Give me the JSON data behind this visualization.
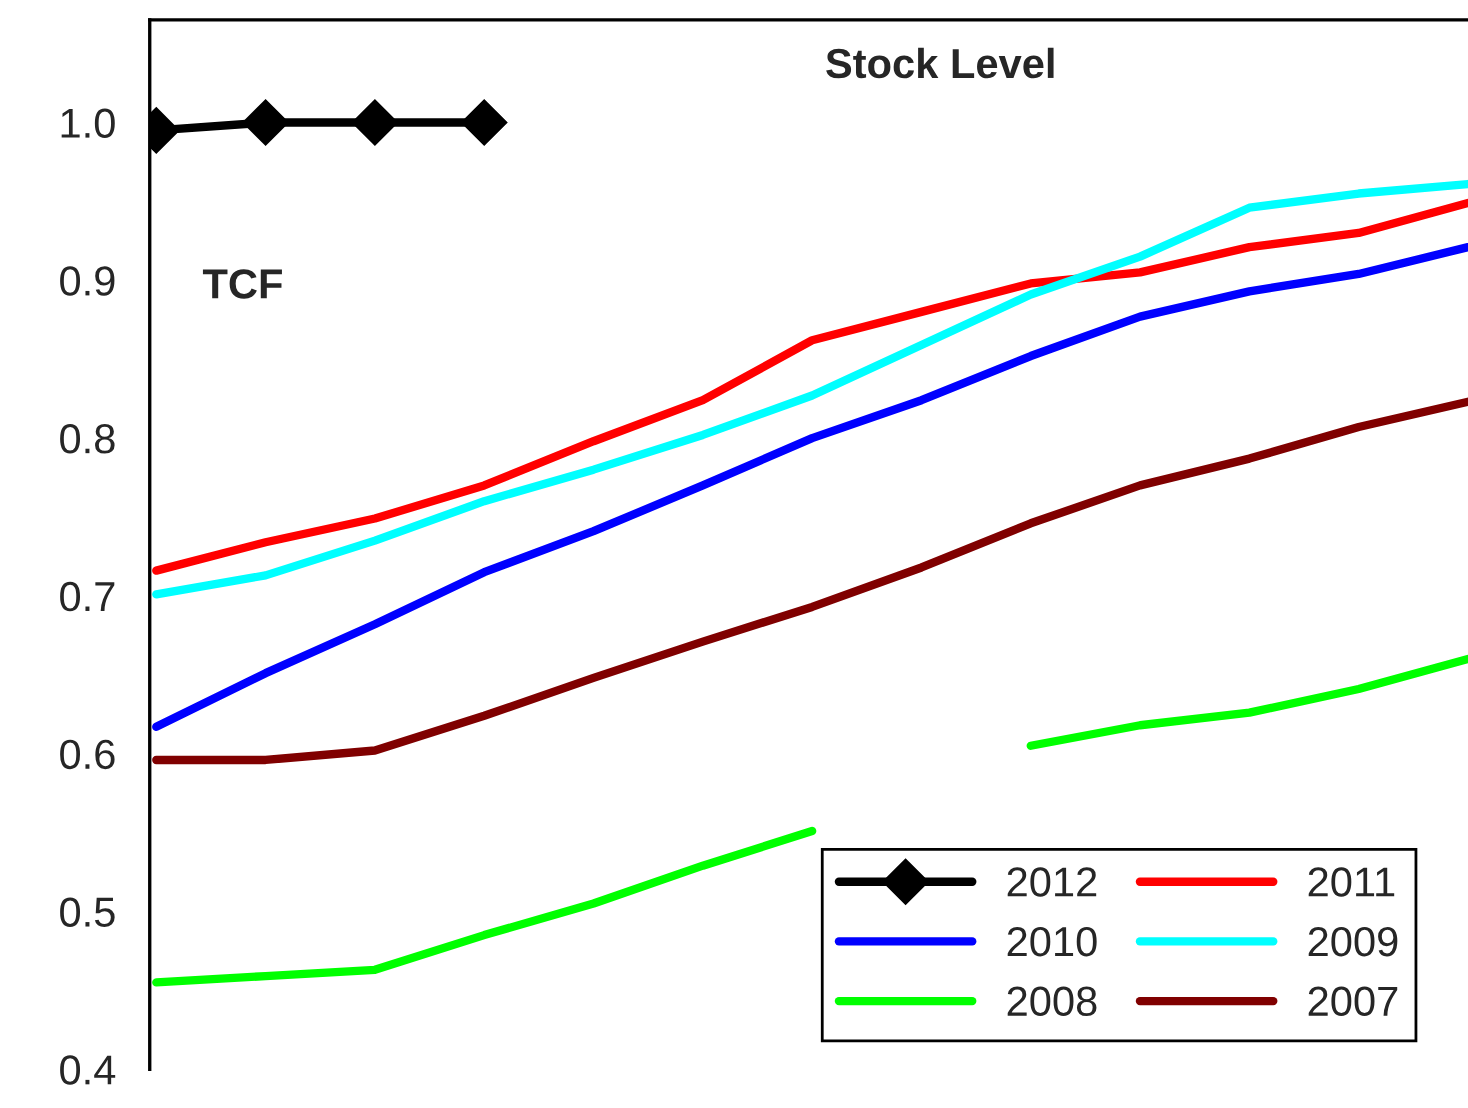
{
  "chart_data": {
    "type": "line",
    "title": "Stock Level",
    "ylabel": "TCF",
    "categories": [
      null,
      null,
      null,
      null,
      null,
      null,
      null,
      null,
      null,
      null,
      null,
      null,
      null
    ],
    "series": [
      {
        "name": "2012",
        "color": "#000000",
        "marker": "diamond",
        "values": [
          0.995,
          1.0,
          1.0,
          1.0,
          null,
          null,
          null,
          null,
          null,
          null,
          null,
          null,
          null
        ]
      },
      {
        "name": "2011",
        "color": "#ff0000",
        "values": [
          0.716,
          0.734,
          0.749,
          0.77,
          0.798,
          0.824,
          0.862,
          0.88,
          0.898,
          0.905,
          0.921,
          0.93,
          0.949
        ]
      },
      {
        "name": "2010",
        "color": "#0000ff",
        "values": [
          0.617,
          0.651,
          0.682,
          0.715,
          0.741,
          0.77,
          0.8,
          0.824,
          0.852,
          0.877,
          0.893,
          0.904,
          0.921
        ]
      },
      {
        "name": "2009",
        "color": "#00ffff",
        "values": [
          0.701,
          0.713,
          0.735,
          0.76,
          0.78,
          0.802,
          0.827,
          0.859,
          0.891,
          0.915,
          0.946,
          0.955,
          0.961
        ]
      },
      {
        "name": "2008",
        "color": "#00ff00",
        "values": [
          0.455,
          0.459,
          0.463,
          0.485,
          0.505,
          0.529,
          0.551,
          null,
          0.605,
          0.618,
          0.626,
          0.641,
          0.66
        ]
      },
      {
        "name": "2007",
        "color": "#800000",
        "values": [
          0.596,
          0.596,
          0.602,
          0.624,
          0.648,
          0.671,
          0.693,
          0.718,
          0.746,
          0.77,
          0.787,
          0.807,
          0.823
        ]
      }
    ],
    "ylim": [
      0.4,
      1.065
    ],
    "yticks": [
      {
        "value": 0.4,
        "label": "0.4"
      },
      {
        "value": 0.5,
        "label": "0.5"
      },
      {
        "value": 0.6,
        "label": "0.6"
      },
      {
        "value": 0.7,
        "label": "0.7"
      },
      {
        "value": 0.8,
        "label": "0.8"
      },
      {
        "value": 0.9,
        "label": "0.9"
      },
      {
        "value": 1.0,
        "label": "1.0"
      }
    ],
    "grid": false,
    "legend": "bottom right",
    "tick_labels": "y"
  }
}
